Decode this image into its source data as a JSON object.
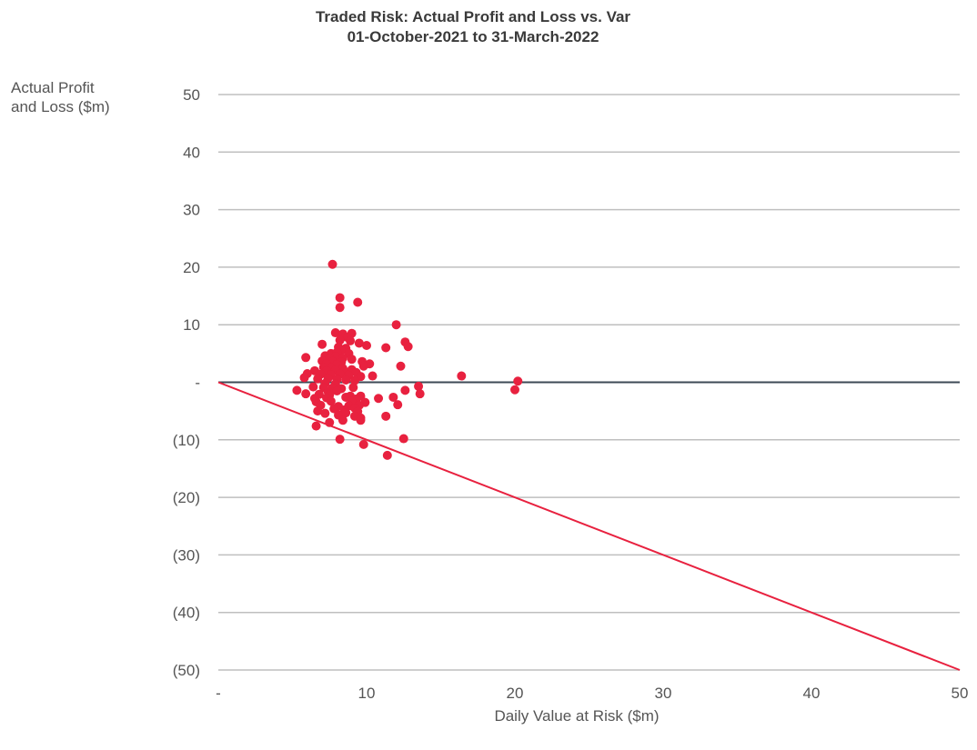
{
  "chart_data": {
    "type": "scatter",
    "title_lines": [
      "Traded Risk: Actual Profit and Loss vs. Var",
      "01-October-2021 to 31-March-2022"
    ],
    "ylabel_lines": [
      "Actual Profit",
      "and Loss ($m)"
    ],
    "xlabel": "Daily Value at Risk ($m)",
    "xlim": [
      0,
      50
    ],
    "ylim": [
      -50,
      50
    ],
    "x_ticks": [
      {
        "value": 0,
        "label": "-"
      },
      {
        "value": 10,
        "label": "10"
      },
      {
        "value": 20,
        "label": "20"
      },
      {
        "value": 30,
        "label": "30"
      },
      {
        "value": 40,
        "label": "40"
      },
      {
        "value": 50,
        "label": "50"
      }
    ],
    "y_ticks": [
      {
        "value": 50,
        "label": "50"
      },
      {
        "value": 40,
        "label": "40"
      },
      {
        "value": 30,
        "label": "30"
      },
      {
        "value": 20,
        "label": "20"
      },
      {
        "value": 10,
        "label": "10"
      },
      {
        "value": 0,
        "label": "-"
      },
      {
        "value": -10,
        "label": "(10)"
      },
      {
        "value": -20,
        "label": "(20)"
      },
      {
        "value": -30,
        "label": "(30)"
      },
      {
        "value": -40,
        "label": "(40)"
      },
      {
        "value": -50,
        "label": "(50)"
      }
    ],
    "grid": true,
    "reference_line": {
      "x": [
        0,
        50
      ],
      "y": [
        0,
        -50
      ]
    },
    "colors": {
      "points": "#e8213f",
      "reference_line": "#e8213f",
      "grid": "#bfbfbf",
      "zero_line": "#3d4a55"
    },
    "points": [
      [
        7.7,
        20.5
      ],
      [
        8.2,
        14.7
      ],
      [
        9.4,
        13.9
      ],
      [
        8.2,
        13.0
      ],
      [
        12.0,
        10.0
      ],
      [
        7.9,
        8.6
      ],
      [
        8.4,
        8.4
      ],
      [
        9.0,
        8.5
      ],
      [
        8.7,
        7.8
      ],
      [
        8.2,
        7.3
      ],
      [
        8.9,
        7.2
      ],
      [
        12.6,
        7.0
      ],
      [
        9.5,
        6.8
      ],
      [
        10.0,
        6.4
      ],
      [
        12.8,
        6.2
      ],
      [
        11.3,
        6.0
      ],
      [
        7.0,
        6.6
      ],
      [
        8.1,
        6.1
      ],
      [
        8.6,
        5.9
      ],
      [
        8.3,
        5.6
      ],
      [
        7.6,
        5.0
      ],
      [
        8.0,
        5.2
      ],
      [
        8.8,
        5.0
      ],
      [
        7.2,
        4.6
      ],
      [
        7.9,
        4.5
      ],
      [
        5.9,
        4.3
      ],
      [
        7.5,
        4.1
      ],
      [
        8.4,
        4.2
      ],
      [
        9.0,
        4.0
      ],
      [
        7.0,
        3.7
      ],
      [
        7.7,
        3.6
      ],
      [
        8.3,
        3.5
      ],
      [
        9.7,
        3.6
      ],
      [
        7.3,
        3.2
      ],
      [
        8.0,
        3.1
      ],
      [
        10.2,
        3.2
      ],
      [
        9.8,
        2.8
      ],
      [
        12.3,
        2.8
      ],
      [
        7.1,
        2.6
      ],
      [
        7.6,
        2.5
      ],
      [
        8.4,
        2.4
      ],
      [
        9.0,
        2.2
      ],
      [
        6.5,
        2.0
      ],
      [
        7.3,
        2.0
      ],
      [
        7.9,
        2.1
      ],
      [
        8.5,
        1.9
      ],
      [
        9.3,
        1.7
      ],
      [
        6.0,
        1.5
      ],
      [
        6.9,
        1.4
      ],
      [
        7.6,
        1.3
      ],
      [
        8.2,
        1.4
      ],
      [
        8.8,
        1.2
      ],
      [
        9.6,
        1.0
      ],
      [
        10.4,
        1.1
      ],
      [
        16.4,
        1.1
      ],
      [
        5.8,
        0.8
      ],
      [
        6.7,
        0.6
      ],
      [
        7.4,
        0.7
      ],
      [
        8.0,
        0.5
      ],
      [
        8.6,
        0.4
      ],
      [
        9.2,
        0.3
      ],
      [
        7.2,
        -0.2
      ],
      [
        7.9,
        -0.3
      ],
      [
        20.2,
        0.2
      ],
      [
        6.4,
        -0.8
      ],
      [
        7.1,
        -0.9
      ],
      [
        7.7,
        -1.0
      ],
      [
        8.3,
        -1.1
      ],
      [
        9.1,
        -0.9
      ],
      [
        13.5,
        -0.7
      ],
      [
        5.3,
        -1.4
      ],
      [
        7.4,
        -1.6
      ],
      [
        8.0,
        -1.5
      ],
      [
        12.6,
        -1.4
      ],
      [
        20.0,
        -1.3
      ],
      [
        5.9,
        -2.0
      ],
      [
        6.8,
        -2.1
      ],
      [
        7.5,
        -2.2
      ],
      [
        8.9,
        -2.4
      ],
      [
        9.6,
        -2.4
      ],
      [
        13.6,
        -2.0
      ],
      [
        6.5,
        -2.8
      ],
      [
        7.3,
        -2.7
      ],
      [
        8.6,
        -2.6
      ],
      [
        9.3,
        -2.9
      ],
      [
        10.8,
        -2.8
      ],
      [
        11.8,
        -2.6
      ],
      [
        9.0,
        -3.3
      ],
      [
        6.6,
        -3.4
      ],
      [
        7.6,
        -3.3
      ],
      [
        9.9,
        -3.5
      ],
      [
        6.9,
        -4.0
      ],
      [
        8.1,
        -4.2
      ],
      [
        8.8,
        -4.1
      ],
      [
        9.5,
        -4.0
      ],
      [
        12.1,
        -3.9
      ],
      [
        7.8,
        -4.6
      ],
      [
        8.5,
        -4.8
      ],
      [
        9.2,
        -4.5
      ],
      [
        6.7,
        -5.0
      ],
      [
        7.2,
        -5.4
      ],
      [
        8.6,
        -5.3
      ],
      [
        9.4,
        -5.1
      ],
      [
        8.1,
        -5.7
      ],
      [
        9.2,
        -5.9
      ],
      [
        9.6,
        -6.2
      ],
      [
        11.3,
        -5.9
      ],
      [
        8.4,
        -6.6
      ],
      [
        9.6,
        -6.6
      ],
      [
        7.5,
        -7.0
      ],
      [
        6.6,
        -7.6
      ],
      [
        8.2,
        -9.9
      ],
      [
        12.5,
        -9.8
      ],
      [
        9.8,
        -10.8
      ],
      [
        11.4,
        -12.7
      ]
    ]
  }
}
